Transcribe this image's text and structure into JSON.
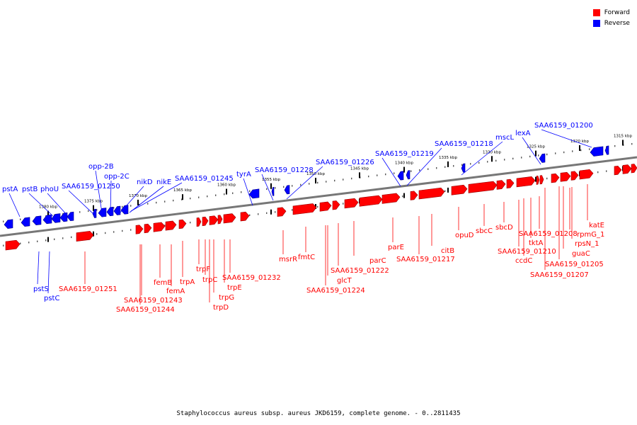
{
  "caption": "Staphylococcus aureus subsp. aureus JKD6159, complete genome. - 0..2811435",
  "legend": [
    {
      "label": "Forward",
      "color": "#ff0000"
    },
    {
      "label": "Reverse",
      "color": "#0000ff"
    }
  ],
  "colors": {
    "forward": "#ff0000",
    "reverse": "#0000ff",
    "backbone": "#888888"
  },
  "ticks": [
    "1380 kbp",
    "1375 kbp",
    "1370 kbp",
    "1365 kbp",
    "1360 kbp",
    "1355 kbp",
    "1350 kbp",
    "1345 kbp",
    "1340 kbp",
    "1335 kbp",
    "1330 kbp",
    "1325 kbp",
    "1320 kbp",
    "1315 kbp"
  ],
  "reverse_genes": [
    "pstA",
    "pstB",
    "phoU",
    "SAA6159_01250",
    "opp-2B",
    "opp-2C",
    "nikD",
    "nikE",
    "SAA6159_01245",
    "tyrA",
    "SAA6159_01228",
    "SAA6159_01226",
    "SAA6159_01219",
    "SAA6159_01218",
    "mscL",
    "lexA",
    "SAA6159_01200",
    "pstS",
    "pstC"
  ],
  "forward_genes": [
    "SAA6159_01251",
    "SAA6159_01243",
    "SAA6159_01244",
    "femB",
    "femA",
    "trpA",
    "trpF",
    "trpC",
    "trpG",
    "trpD",
    "trpE",
    "SAA6159_01232",
    "msrR",
    "fmtC",
    "glcT",
    "SAA6159_01224",
    "SAA6159_01222",
    "parC",
    "parE",
    "SAA6159_01217",
    "citB",
    "opuD",
    "sbcC",
    "sbcD",
    "SAA6159_01210",
    "ccdC",
    "tktA",
    "SAA6159_01208",
    "rpmG_1",
    "rpsN_1",
    "guaC",
    "SAA6159_01205",
    "SAA6159_01207",
    "katE"
  ]
}
